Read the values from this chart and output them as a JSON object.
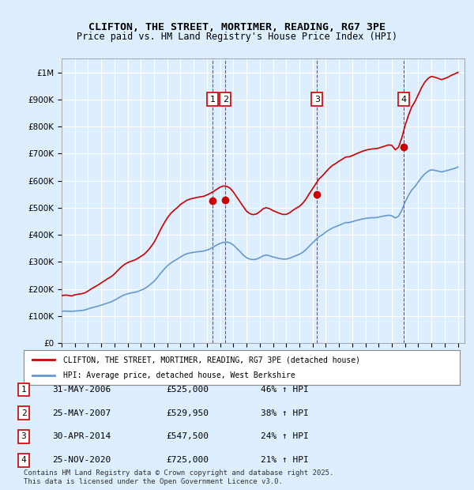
{
  "title_line1": "CLIFTON, THE STREET, MORTIMER, READING, RG7 3PE",
  "title_line2": "Price paid vs. HM Land Registry's House Price Index (HPI)",
  "ylabel_ticks": [
    "£0",
    "£100K",
    "£200K",
    "£300K",
    "£400K",
    "£500K",
    "£600K",
    "£700K",
    "£800K",
    "£900K",
    "£1M"
  ],
  "ytick_values": [
    0,
    100000,
    200000,
    300000,
    400000,
    500000,
    600000,
    700000,
    800000,
    900000,
    1000000
  ],
  "ylim": [
    0,
    1050000
  ],
  "xlim_start": 1995.0,
  "xlim_end": 2025.5,
  "background_color": "#ddeeff",
  "plot_bg_color": "#ddeeff",
  "grid_color": "#ffffff",
  "red_line_color": "#cc0000",
  "blue_line_color": "#6699cc",
  "sale_marker_color": "#cc0000",
  "vline_color": "#cc0000",
  "legend_label_red": "CLIFTON, THE STREET, MORTIMER, READING, RG7 3PE (detached house)",
  "legend_label_blue": "HPI: Average price, detached house, West Berkshire",
  "footer_text": "Contains HM Land Registry data © Crown copyright and database right 2025.\nThis data is licensed under the Open Government Licence v3.0.",
  "transactions": [
    {
      "num": 1,
      "date": "31-MAY-2006",
      "price": "£525,000",
      "hpi": "46% ↑ HPI",
      "x": 2006.42
    },
    {
      "num": 2,
      "date": "25-MAY-2007",
      "price": "£529,950",
      "hpi": "38% ↑ HPI",
      "x": 2007.4
    },
    {
      "num": 3,
      "date": "30-APR-2014",
      "price": "£547,500",
      "hpi": "24% ↑ HPI",
      "x": 2014.33
    },
    {
      "num": 4,
      "date": "25-NOV-2020",
      "price": "£725,000",
      "hpi": "21% ↑ HPI",
      "x": 2020.9
    }
  ],
  "hpi_data": {
    "x": [
      1995.0,
      1995.25,
      1995.5,
      1995.75,
      1996.0,
      1996.25,
      1996.5,
      1996.75,
      1997.0,
      1997.25,
      1997.5,
      1997.75,
      1998.0,
      1998.25,
      1998.5,
      1998.75,
      1999.0,
      1999.25,
      1999.5,
      1999.75,
      2000.0,
      2000.25,
      2000.5,
      2000.75,
      2001.0,
      2001.25,
      2001.5,
      2001.75,
      2002.0,
      2002.25,
      2002.5,
      2002.75,
      2003.0,
      2003.25,
      2003.5,
      2003.75,
      2004.0,
      2004.25,
      2004.5,
      2004.75,
      2005.0,
      2005.25,
      2005.5,
      2005.75,
      2006.0,
      2006.25,
      2006.5,
      2006.75,
      2007.0,
      2007.25,
      2007.5,
      2007.75,
      2008.0,
      2008.25,
      2008.5,
      2008.75,
      2009.0,
      2009.25,
      2009.5,
      2009.75,
      2010.0,
      2010.25,
      2010.5,
      2010.75,
      2011.0,
      2011.25,
      2011.5,
      2011.75,
      2012.0,
      2012.25,
      2012.5,
      2012.75,
      2013.0,
      2013.25,
      2013.5,
      2013.75,
      2014.0,
      2014.25,
      2014.5,
      2014.75,
      2015.0,
      2015.25,
      2015.5,
      2015.75,
      2016.0,
      2016.25,
      2016.5,
      2016.75,
      2017.0,
      2017.25,
      2017.5,
      2017.75,
      2018.0,
      2018.25,
      2018.5,
      2018.75,
      2019.0,
      2019.25,
      2019.5,
      2019.75,
      2020.0,
      2020.25,
      2020.5,
      2020.75,
      2021.0,
      2021.25,
      2021.5,
      2021.75,
      2022.0,
      2022.25,
      2022.5,
      2022.75,
      2023.0,
      2023.25,
      2023.5,
      2023.75,
      2024.0,
      2024.25,
      2024.5,
      2024.75,
      2025.0
    ],
    "y": [
      117000,
      118000,
      117500,
      117000,
      118000,
      119000,
      120000,
      122000,
      126000,
      130000,
      133000,
      136000,
      140000,
      144000,
      148000,
      152000,
      158000,
      165000,
      172000,
      178000,
      182000,
      185000,
      187000,
      190000,
      195000,
      200000,
      208000,
      218000,
      228000,
      242000,
      258000,
      272000,
      285000,
      295000,
      303000,
      310000,
      318000,
      325000,
      330000,
      333000,
      335000,
      337000,
      338000,
      340000,
      343000,
      348000,
      355000,
      362000,
      368000,
      372000,
      373000,
      370000,
      362000,
      350000,
      338000,
      325000,
      315000,
      310000,
      308000,
      310000,
      315000,
      322000,
      325000,
      322000,
      318000,
      315000,
      312000,
      310000,
      310000,
      313000,
      318000,
      323000,
      328000,
      335000,
      345000,
      358000,
      370000,
      382000,
      393000,
      400000,
      410000,
      418000,
      425000,
      430000,
      435000,
      440000,
      445000,
      445000,
      448000,
      452000,
      455000,
      458000,
      460000,
      462000,
      463000,
      463000,
      465000,
      468000,
      470000,
      472000,
      470000,
      462000,
      468000,
      490000,
      520000,
      545000,
      565000,
      578000,
      595000,
      612000,
      625000,
      635000,
      640000,
      638000,
      635000,
      632000,
      635000,
      638000,
      642000,
      645000,
      650000
    ]
  },
  "red_data": {
    "x": [
      1995.0,
      1995.25,
      1995.5,
      1995.75,
      1996.0,
      1996.25,
      1996.5,
      1996.75,
      1997.0,
      1997.25,
      1997.5,
      1997.75,
      1998.0,
      1998.25,
      1998.5,
      1998.75,
      1999.0,
      1999.25,
      1999.5,
      1999.75,
      2000.0,
      2000.25,
      2000.5,
      2000.75,
      2001.0,
      2001.25,
      2001.5,
      2001.75,
      2002.0,
      2002.25,
      2002.5,
      2002.75,
      2003.0,
      2003.25,
      2003.5,
      2003.75,
      2004.0,
      2004.25,
      2004.5,
      2004.75,
      2005.0,
      2005.25,
      2005.5,
      2005.75,
      2006.0,
      2006.25,
      2006.5,
      2006.75,
      2007.0,
      2007.25,
      2007.5,
      2007.75,
      2008.0,
      2008.25,
      2008.5,
      2008.75,
      2009.0,
      2009.25,
      2009.5,
      2009.75,
      2010.0,
      2010.25,
      2010.5,
      2010.75,
      2011.0,
      2011.25,
      2011.5,
      2011.75,
      2012.0,
      2012.25,
      2012.5,
      2012.75,
      2013.0,
      2013.25,
      2013.5,
      2013.75,
      2014.0,
      2014.25,
      2014.5,
      2014.75,
      2015.0,
      2015.25,
      2015.5,
      2015.75,
      2016.0,
      2016.25,
      2016.5,
      2016.75,
      2017.0,
      2017.25,
      2017.5,
      2017.75,
      2018.0,
      2018.25,
      2018.5,
      2018.75,
      2019.0,
      2019.25,
      2019.5,
      2019.75,
      2020.0,
      2020.25,
      2020.5,
      2020.75,
      2021.0,
      2021.25,
      2021.5,
      2021.75,
      2022.0,
      2022.25,
      2022.5,
      2022.75,
      2023.0,
      2023.25,
      2023.5,
      2023.75,
      2024.0,
      2024.25,
      2024.5,
      2024.75,
      2025.0
    ],
    "y": [
      175000,
      177000,
      176000,
      174000,
      178000,
      180000,
      182000,
      185000,
      192000,
      200000,
      207000,
      214000,
      222000,
      230000,
      238000,
      245000,
      255000,
      268000,
      280000,
      290000,
      297000,
      302000,
      306000,
      312000,
      320000,
      328000,
      340000,
      355000,
      372000,
      395000,
      420000,
      442000,
      462000,
      478000,
      490000,
      500000,
      512000,
      520000,
      528000,
      532000,
      535000,
      538000,
      540000,
      542000,
      547000,
      553000,
      560000,
      568000,
      576000,
      580000,
      579000,
      572000,
      558000,
      540000,
      522000,
      504000,
      487000,
      478000,
      474000,
      477000,
      485000,
      496000,
      500000,
      496000,
      489000,
      484000,
      479000,
      475000,
      475000,
      481000,
      490000,
      498000,
      505000,
      516000,
      532000,
      552000,
      570000,
      589000,
      607000,
      618000,
      632000,
      645000,
      656000,
      663000,
      672000,
      679000,
      687000,
      688000,
      692000,
      698000,
      703000,
      708000,
      712000,
      715000,
      717000,
      718000,
      720000,
      724000,
      728000,
      732000,
      730000,
      714000,
      723000,
      758000,
      803000,
      840000,
      872000,
      892000,
      918000,
      944000,
      964000,
      978000,
      985000,
      982000,
      978000,
      973000,
      977000,
      982000,
      989000,
      994000,
      1000000
    ]
  }
}
